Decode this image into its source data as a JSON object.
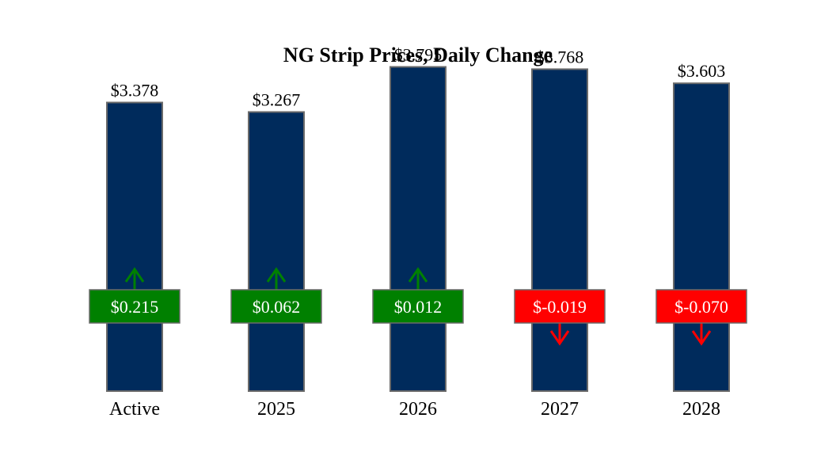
{
  "chart_data": {
    "type": "bar",
    "title": "NG Strip Prices, Daily Change",
    "categories": [
      "Active",
      "2025",
      "2026",
      "2027",
      "2028"
    ],
    "value_labels": [
      "$3.378",
      "$3.267",
      "$3.795",
      "$3.768",
      "$3.603"
    ],
    "values": [
      3.378,
      3.267,
      3.795,
      3.768,
      3.603
    ],
    "changes": [
      0.215,
      0.062,
      0.012,
      -0.019,
      -0.07
    ],
    "change_labels": [
      "$0.215",
      "$0.062",
      "$0.012",
      "$-0.019",
      "$-0.070"
    ],
    "ylim": [
      0,
      4.3
    ],
    "colors": {
      "bar": "#002b5c",
      "bar_edge": "#6a6a6a",
      "up": "#008000",
      "down": "#ff0000"
    }
  }
}
